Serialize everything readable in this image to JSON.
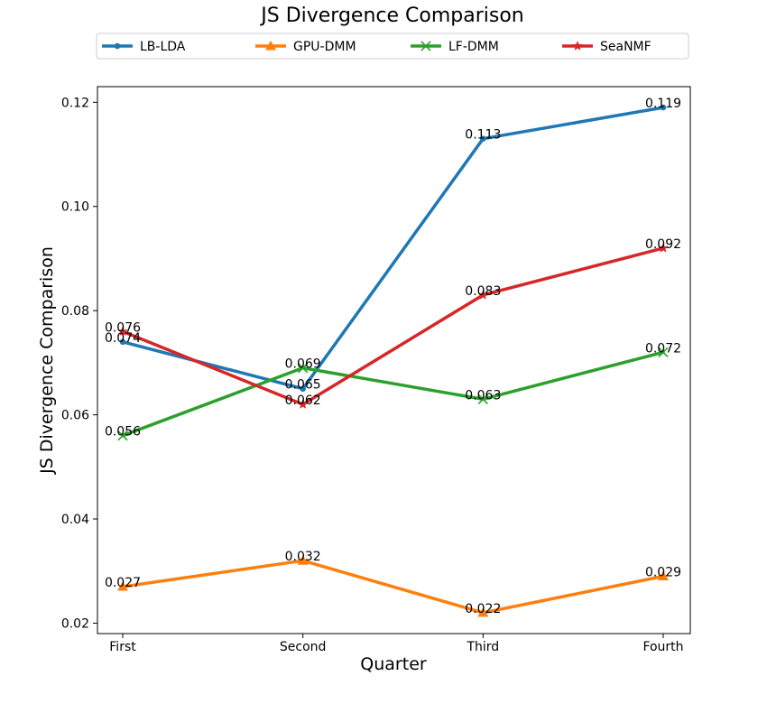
{
  "chart_data": {
    "type": "line",
    "title": "JS Divergence Comparison",
    "xlabel": "Quarter",
    "ylabel": "JS Divergence Comparison",
    "categories": [
      "First",
      "Second",
      "Third",
      "Fourth"
    ],
    "ylim": [
      0.018,
      0.123
    ],
    "yticks": [
      "0.02",
      "0.04",
      "0.06",
      "0.08",
      "0.10",
      "0.12"
    ],
    "legend_position": "top",
    "series": [
      {
        "name": "LB-LDA",
        "values": [
          0.074,
          0.065,
          0.113,
          0.119
        ],
        "labels": [
          "0.074",
          "0.065",
          "0.113",
          "0.119"
        ],
        "color": "#1f77b4",
        "marker": "circle"
      },
      {
        "name": "GPU-DMM",
        "values": [
          0.027,
          0.032,
          0.022,
          0.029
        ],
        "labels": [
          "0.027",
          "0.032",
          "0.022",
          "0.029"
        ],
        "color": "#ff7f0e",
        "marker": "triangle"
      },
      {
        "name": "LF-DMM",
        "values": [
          0.056,
          0.069,
          0.063,
          0.072
        ],
        "labels": [
          "0.056",
          "0.069",
          "0.063",
          "0.072"
        ],
        "color": "#2ca02c",
        "marker": "x"
      },
      {
        "name": "SeaNMF",
        "values": [
          0.076,
          0.062,
          0.083,
          0.092
        ],
        "labels": [
          "0.076",
          "0.062",
          "0.083",
          "0.092"
        ],
        "color": "#d62728",
        "marker": "star"
      }
    ]
  }
}
